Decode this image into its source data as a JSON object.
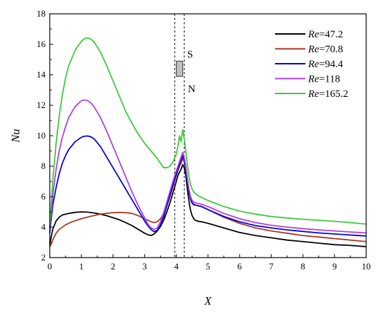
{
  "chart_data": {
    "type": "line",
    "xlabel": "X",
    "ylabel": "Nu",
    "xlim": [
      0,
      10
    ],
    "ylim": [
      2,
      18
    ],
    "xticks": [
      0,
      1,
      2,
      3,
      4,
      5,
      6,
      7,
      8,
      9,
      10
    ],
    "yticks": [
      2,
      4,
      6,
      8,
      10,
      12,
      14,
      16,
      18
    ],
    "grid": false,
    "legend_position": "top-right",
    "annotations": {
      "s_label": "S",
      "n_label": "N",
      "block_color": "#c0c0c0",
      "dashed_lines_x": [
        3.95,
        4.25
      ],
      "block_x": [
        4.0,
        4.2
      ],
      "block_y": [
        13.9,
        14.9
      ]
    },
    "series": [
      {
        "legend_prefix": "Re",
        "legend_value": "=47.2",
        "color": "#000000",
        "x": [
          0,
          0.05,
          0.1,
          0.2,
          0.3,
          0.4,
          0.6,
          0.8,
          1.0,
          1.2,
          1.4,
          1.6,
          1.8,
          2.0,
          2.2,
          2.4,
          2.6,
          2.8,
          3.0,
          3.1,
          3.2,
          3.3,
          3.4,
          3.5,
          3.6,
          3.7,
          3.8,
          3.9,
          4.0,
          4.05,
          4.1,
          4.15,
          4.2,
          4.25,
          4.3,
          4.35,
          4.4,
          4.45,
          4.5,
          4.55,
          4.6,
          4.7,
          4.8,
          5.0,
          5.5,
          6.0,
          6.5,
          7.0,
          7.5,
          8.0,
          8.5,
          9.0,
          9.5,
          10.0
        ],
        "y": [
          2.85,
          3.4,
          3.9,
          4.4,
          4.65,
          4.8,
          4.9,
          4.97,
          5.0,
          4.98,
          4.93,
          4.85,
          4.75,
          4.62,
          4.48,
          4.3,
          4.1,
          3.85,
          3.6,
          3.5,
          3.45,
          3.55,
          3.75,
          4.05,
          4.45,
          5.0,
          5.6,
          6.3,
          7.0,
          7.4,
          7.6,
          7.8,
          8.1,
          7.9,
          7.4,
          6.5,
          5.7,
          5.1,
          4.75,
          4.55,
          4.45,
          4.38,
          4.35,
          4.25,
          3.95,
          3.65,
          3.45,
          3.3,
          3.15,
          3.05,
          2.95,
          2.85,
          2.8,
          2.72
        ]
      },
      {
        "legend_prefix": "Re",
        "legend_value": "=70.8",
        "color": "#a6371c",
        "x": [
          0,
          0.05,
          0.1,
          0.2,
          0.3,
          0.5,
          0.7,
          1.0,
          1.3,
          1.6,
          1.9,
          2.2,
          2.4,
          2.6,
          2.8,
          3.0,
          3.1,
          3.2,
          3.3,
          3.4,
          3.5,
          3.6,
          3.7,
          3.8,
          3.9,
          4.0,
          4.1,
          4.15,
          4.2,
          4.25,
          4.3,
          4.35,
          4.4,
          4.45,
          4.5,
          4.55,
          4.6,
          4.7,
          4.8,
          5.0,
          5.5,
          6.0,
          6.5,
          7.0,
          7.5,
          8.0,
          8.5,
          9.0,
          9.5,
          10.0
        ],
        "y": [
          2.7,
          2.9,
          3.2,
          3.6,
          3.85,
          4.15,
          4.35,
          4.55,
          4.72,
          4.85,
          4.93,
          4.97,
          4.95,
          4.9,
          4.75,
          4.55,
          4.45,
          4.35,
          4.3,
          4.35,
          4.55,
          4.9,
          5.4,
          6.0,
          6.7,
          7.4,
          8.0,
          8.2,
          8.5,
          8.3,
          7.8,
          7.0,
          6.3,
          5.8,
          5.55,
          5.45,
          5.45,
          5.4,
          5.35,
          5.15,
          4.65,
          4.25,
          3.95,
          3.75,
          3.6,
          3.45,
          3.35,
          3.25,
          3.15,
          3.05
        ]
      },
      {
        "legend_prefix": "Re",
        "legend_value": "=94.4",
        "color": "#0000dd",
        "x": [
          0,
          0.05,
          0.1,
          0.2,
          0.3,
          0.4,
          0.5,
          0.6,
          0.8,
          1.0,
          1.1,
          1.2,
          1.3,
          1.4,
          1.6,
          1.8,
          2.0,
          2.2,
          2.4,
          2.6,
          2.8,
          3.0,
          3.1,
          3.2,
          3.3,
          3.4,
          3.5,
          3.6,
          3.7,
          3.8,
          3.9,
          4.0,
          4.1,
          4.15,
          4.2,
          4.25,
          4.3,
          4.35,
          4.4,
          4.45,
          4.5,
          4.55,
          4.6,
          4.7,
          4.8,
          5.0,
          5.5,
          6.0,
          6.5,
          7.0,
          7.5,
          8.0,
          8.5,
          9.0,
          9.5,
          10.0
        ],
        "y": [
          3.6,
          4.6,
          5.5,
          6.6,
          7.5,
          8.2,
          8.7,
          9.1,
          9.6,
          9.9,
          9.97,
          9.98,
          9.93,
          9.8,
          9.3,
          8.6,
          7.9,
          7.2,
          6.5,
          5.8,
          5.1,
          4.4,
          4.1,
          3.85,
          3.7,
          3.8,
          4.15,
          4.7,
          5.4,
          6.1,
          6.8,
          7.5,
          8.1,
          8.4,
          8.7,
          8.4,
          7.8,
          7.0,
          6.3,
          5.85,
          5.6,
          5.5,
          5.45,
          5.4,
          5.35,
          5.15,
          4.7,
          4.35,
          4.1,
          3.95,
          3.82,
          3.72,
          3.62,
          3.55,
          3.48,
          3.42
        ]
      },
      {
        "legend_prefix": "Re",
        "legend_value": "=118",
        "color": "#b03ce8",
        "x": [
          0,
          0.05,
          0.1,
          0.2,
          0.3,
          0.4,
          0.5,
          0.6,
          0.8,
          1.0,
          1.1,
          1.2,
          1.3,
          1.4,
          1.6,
          1.8,
          2.0,
          2.2,
          2.4,
          2.6,
          2.8,
          3.0,
          3.1,
          3.2,
          3.3,
          3.4,
          3.5,
          3.6,
          3.7,
          3.8,
          3.9,
          4.0,
          4.1,
          4.15,
          4.2,
          4.25,
          4.3,
          4.35,
          4.4,
          4.45,
          4.5,
          4.55,
          4.6,
          4.7,
          4.8,
          5.0,
          5.5,
          6.0,
          6.5,
          7.0,
          7.5,
          8.0,
          8.5,
          9.0,
          9.5,
          10.0
        ],
        "y": [
          3.8,
          5.0,
          6.2,
          7.8,
          9.0,
          9.9,
          10.6,
          11.2,
          11.9,
          12.3,
          12.35,
          12.3,
          12.15,
          11.9,
          11.2,
          10.3,
          9.3,
          8.3,
          7.3,
          6.3,
          5.4,
          4.6,
          4.2,
          3.95,
          3.85,
          3.95,
          4.35,
          4.95,
          5.65,
          6.35,
          7.05,
          7.7,
          8.3,
          8.6,
          8.9,
          8.6,
          8.0,
          7.2,
          6.5,
          6.0,
          5.75,
          5.65,
          5.6,
          5.55,
          5.5,
          5.35,
          4.9,
          4.55,
          4.3,
          4.12,
          4.0,
          3.9,
          3.82,
          3.75,
          3.68,
          3.62
        ]
      },
      {
        "legend_prefix": "Re",
        "legend_value": "=165.2",
        "color": "#3ac93a",
        "x": [
          0,
          0.05,
          0.1,
          0.2,
          0.3,
          0.4,
          0.5,
          0.6,
          0.8,
          1.0,
          1.1,
          1.2,
          1.3,
          1.4,
          1.6,
          1.8,
          2.0,
          2.2,
          2.4,
          2.6,
          2.8,
          3.0,
          3.2,
          3.4,
          3.5,
          3.6,
          3.7,
          3.8,
          3.9,
          4.0,
          4.05,
          4.1,
          4.15,
          4.2,
          4.25,
          4.3,
          4.35,
          4.4,
          4.45,
          4.5,
          4.55,
          4.6,
          4.7,
          4.8,
          5.0,
          5.5,
          6.0,
          6.5,
          7.0,
          7.5,
          8.0,
          8.5,
          9.0,
          9.5,
          10.0
        ],
        "y": [
          4.0,
          5.6,
          7.2,
          9.5,
          11.3,
          12.7,
          13.8,
          14.6,
          15.6,
          16.2,
          16.38,
          16.42,
          16.35,
          16.15,
          15.5,
          14.6,
          13.6,
          12.6,
          11.6,
          10.8,
          10.1,
          9.5,
          9.0,
          8.5,
          8.2,
          7.9,
          7.9,
          8.0,
          8.3,
          8.8,
          9.3,
          10.0,
          9.6,
          10.4,
          9.8,
          9.0,
          8.1,
          7.3,
          6.8,
          6.5,
          6.3,
          6.2,
          6.05,
          5.95,
          5.75,
          5.35,
          5.05,
          4.85,
          4.7,
          4.6,
          4.52,
          4.45,
          4.38,
          4.3,
          4.2
        ]
      }
    ]
  }
}
